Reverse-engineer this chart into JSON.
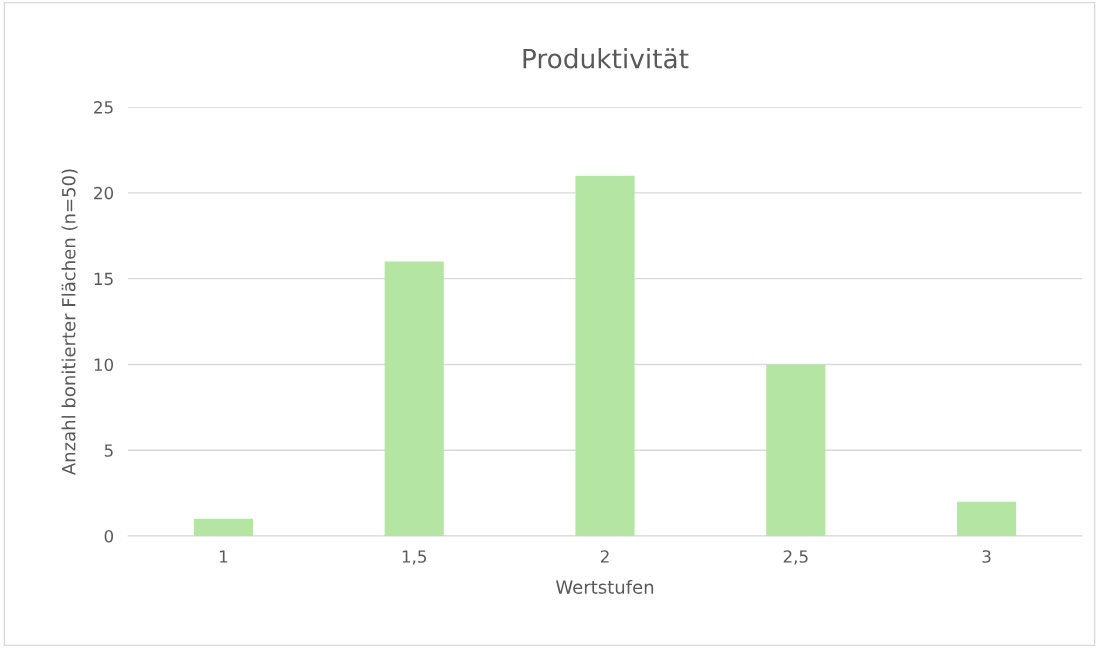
{
  "chart_data": {
    "type": "bar",
    "title": "Produktivität",
    "xlabel": "Wertstufen",
    "ylabel": "Anzahl bonitierter Flächen (n=50)",
    "categories": [
      "1",
      "1,5",
      "2",
      "2,5",
      "3"
    ],
    "values": [
      1,
      16,
      21,
      10,
      2
    ],
    "color": "#b4e5a2",
    "ylim": [
      0,
      25
    ],
    "yticks": [
      0,
      5,
      10,
      15,
      20,
      25
    ],
    "grid": "y"
  }
}
